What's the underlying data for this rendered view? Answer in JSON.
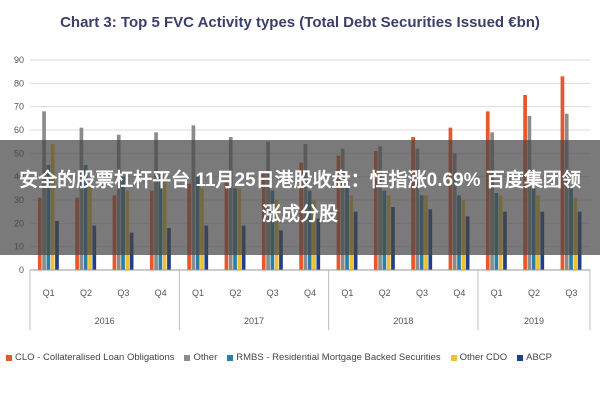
{
  "chart_data": {
    "type": "bar",
    "title": "Chart 3: Top 5 FVC Activity types (Total Debt Securities Issued €bn)",
    "xlabel": "",
    "ylabel": "",
    "ylim": [
      0,
      90
    ],
    "yticks": [
      0,
      10,
      20,
      30,
      40,
      50,
      60,
      70,
      80,
      90
    ],
    "grid": true,
    "legend_position": "bottom",
    "categories": [
      "Q1",
      "Q2",
      "Q3",
      "Q4",
      "Q1",
      "Q2",
      "Q3",
      "Q4",
      "Q1",
      "Q2",
      "Q3",
      "Q4",
      "Q1",
      "Q2",
      "Q3"
    ],
    "year_groups": [
      {
        "label": "2016",
        "count": 4
      },
      {
        "label": "2017",
        "count": 4
      },
      {
        "label": "2018",
        "count": 4
      },
      {
        "label": "2019",
        "count": 3
      }
    ],
    "series": [
      {
        "name": "CLO - Collateralised Loan Obligations",
        "color": "#e8572a",
        "values": [
          31,
          31,
          32,
          34,
          37,
          38,
          42,
          46,
          49,
          51,
          57,
          61,
          68,
          75,
          83
        ]
      },
      {
        "name": "Other",
        "color": "#8c8c8c",
        "values": [
          68,
          61,
          58,
          59,
          62,
          57,
          55,
          54,
          52,
          53,
          52,
          50,
          59,
          66,
          67
        ]
      },
      {
        "name": "RMBS - Residential Mortgage Backed Securities",
        "color": "#2a7fa8",
        "values": [
          45,
          45,
          40,
          41,
          40,
          35,
          34,
          34,
          36,
          34,
          32,
          32,
          33,
          35,
          36
        ]
      },
      {
        "name": "Other CDO",
        "color": "#f2c02e",
        "values": [
          54,
          36,
          34,
          38,
          35,
          35,
          30,
          30,
          32,
          32,
          32,
          30,
          32,
          32,
          31
        ]
      },
      {
        "name": "ABCP",
        "color": "#1f3f8a",
        "values": [
          21,
          19,
          16,
          18,
          19,
          19,
          17,
          22,
          25,
          27,
          26,
          23,
          25,
          25,
          25
        ]
      }
    ]
  },
  "overlay": {
    "text": "安全的股票杠杆平台 11月25日港股收盘：恒指涨0.69% 百度集团领涨成分股"
  }
}
